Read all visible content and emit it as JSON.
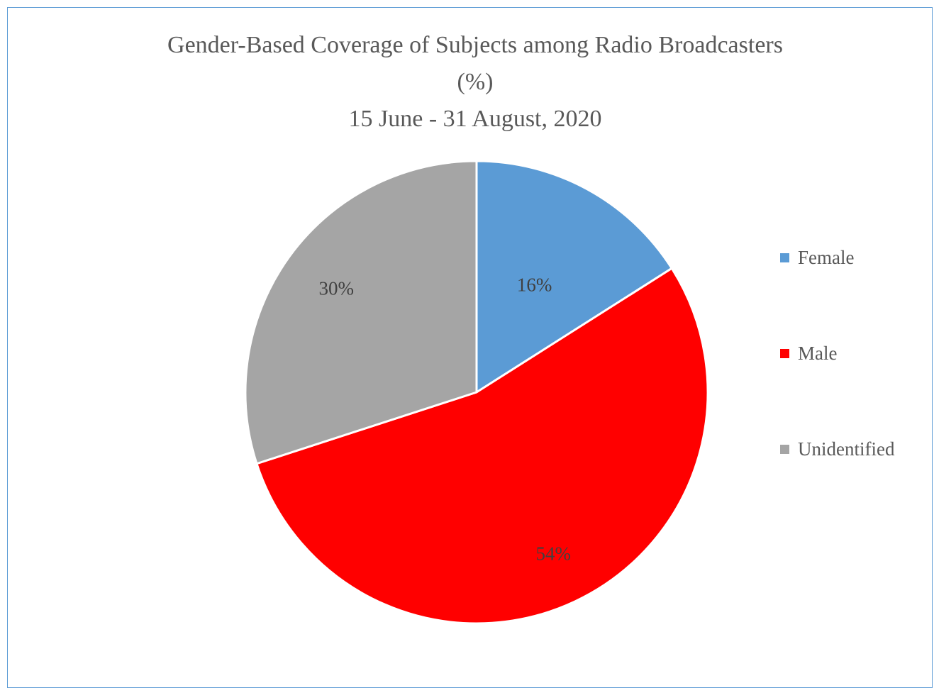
{
  "chart_data": {
    "type": "pie",
    "title": [
      "Gender-Based Coverage of Subjects among Radio Broadcasters",
      "(%)",
      "15 June - 31 August, 2020"
    ],
    "slices": [
      {
        "label": "Female",
        "value": 16,
        "data_label": "16%",
        "color": "#5b9bd5"
      },
      {
        "label": "Male",
        "value": 54,
        "data_label": "54%",
        "color": "#ff0000"
      },
      {
        "label": "Unidentified",
        "value": 30,
        "data_label": "30%",
        "color": "#a5a5a5"
      }
    ],
    "legend_position": "right"
  }
}
